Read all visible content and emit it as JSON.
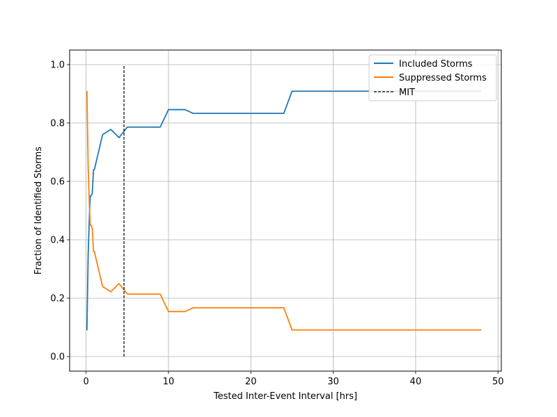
{
  "chart_data": {
    "type": "line",
    "title": "",
    "xlabel": "Tested Inter-Event Interval [hrs]",
    "ylabel": "Fraction of Identified Storms",
    "xlim": [
      -2.0,
      50.4
    ],
    "ylim": [
      -0.05,
      1.05
    ],
    "xticks": [
      0,
      10,
      20,
      30,
      40,
      50
    ],
    "yticks": [
      0.0,
      0.2,
      0.4,
      0.6,
      0.8,
      1.0
    ],
    "grid": true,
    "legend_position": "top-right",
    "series": [
      {
        "name": "Included Storms",
        "color": "#1f77b4",
        "style": "solid",
        "x": [
          0.1,
          0.25,
          0.4,
          0.5,
          0.6,
          0.75,
          0.9,
          1.0,
          2.0,
          3.0,
          4.0,
          5.0,
          6.0,
          7.0,
          8.0,
          9.0,
          10.0,
          11.0,
          12.0,
          13.0,
          14.0,
          24.0,
          25.0,
          48.0
        ],
        "y": [
          0.09,
          0.35,
          0.48,
          0.55,
          0.55,
          0.56,
          0.64,
          0.64,
          0.76,
          0.778,
          0.75,
          0.786,
          0.786,
          0.786,
          0.786,
          0.786,
          0.846,
          0.846,
          0.846,
          0.833,
          0.833,
          0.833,
          0.909,
          0.909
        ]
      },
      {
        "name": "Suppressed Storms",
        "color": "#ff7f0e",
        "style": "solid",
        "x": [
          0.1,
          0.25,
          0.4,
          0.5,
          0.6,
          0.75,
          0.9,
          1.0,
          2.0,
          3.0,
          4.0,
          5.0,
          6.0,
          7.0,
          8.0,
          9.0,
          10.0,
          11.0,
          12.0,
          13.0,
          14.0,
          24.0,
          25.0,
          48.0
        ],
        "y": [
          0.91,
          0.65,
          0.52,
          0.45,
          0.45,
          0.44,
          0.36,
          0.36,
          0.24,
          0.222,
          0.25,
          0.214,
          0.214,
          0.214,
          0.214,
          0.214,
          0.154,
          0.154,
          0.154,
          0.167,
          0.167,
          0.167,
          0.091,
          0.091
        ]
      },
      {
        "name": "MIT",
        "color": "#000000",
        "style": "dashed",
        "x": [
          4.6,
          4.6
        ],
        "y": [
          0.0,
          1.0
        ]
      }
    ]
  }
}
